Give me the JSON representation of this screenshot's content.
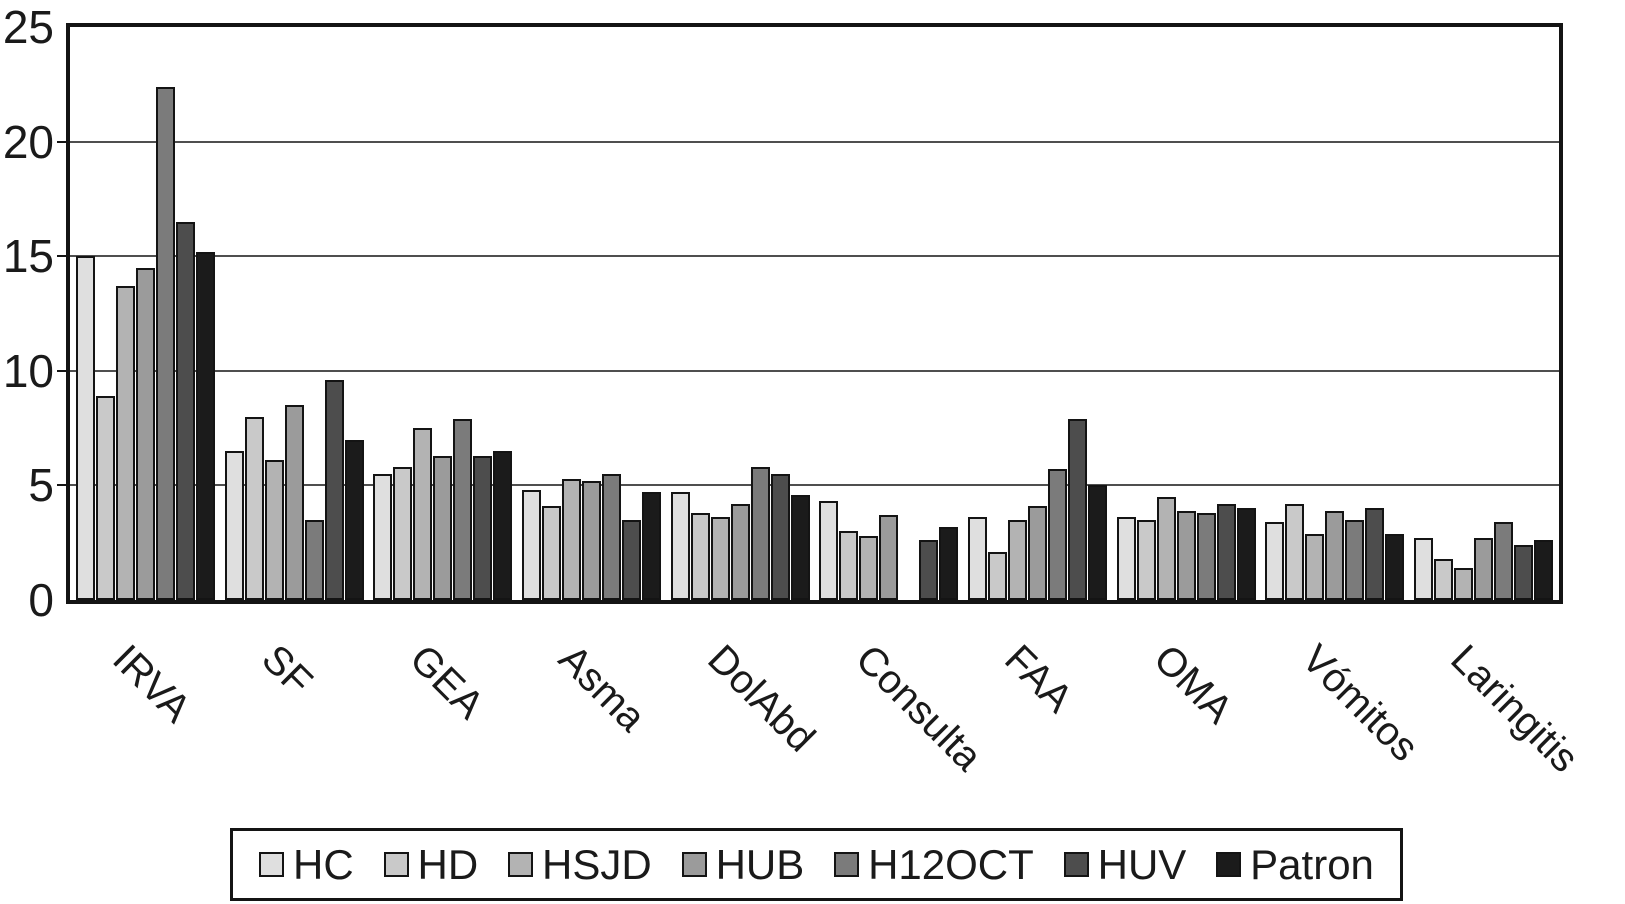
{
  "chart_data": {
    "type": "bar",
    "title": "",
    "xlabel": "",
    "ylabel": "",
    "ylim": [
      0,
      25
    ],
    "yticks": [
      0,
      5,
      10,
      15,
      20,
      25
    ],
    "grid": true,
    "legend_position": "bottom",
    "categories": [
      "IRVA",
      "SF",
      "GEA",
      "Asma",
      "DolAbd",
      "Consulta",
      "FAA",
      "OMA",
      "Vómitos",
      "Laringitis"
    ],
    "series": [
      {
        "name": "HC",
        "color": "#dfdfdf",
        "values": [
          15.0,
          6.5,
          5.5,
          4.8,
          4.7,
          4.3,
          3.6,
          3.6,
          3.4,
          2.7
        ]
      },
      {
        "name": "HD",
        "color": "#c9c9c9",
        "values": [
          8.9,
          8.0,
          5.8,
          4.1,
          3.8,
          3.0,
          2.1,
          3.5,
          4.2,
          1.8
        ]
      },
      {
        "name": "HSJD",
        "color": "#b3b3b3",
        "values": [
          13.7,
          6.1,
          7.5,
          5.3,
          3.6,
          2.8,
          3.5,
          4.5,
          2.9,
          1.4
        ]
      },
      {
        "name": "HUB",
        "color": "#9b9b9b",
        "values": [
          14.5,
          8.5,
          6.3,
          5.2,
          4.2,
          3.7,
          4.1,
          3.9,
          3.9,
          2.7
        ]
      },
      {
        "name": "H12OCT",
        "color": "#7b7b7b",
        "values": [
          22.4,
          3.5,
          7.9,
          5.5,
          5.8,
          0,
          5.7,
          3.8,
          3.5,
          3.4
        ]
      },
      {
        "name": "HUV",
        "color": "#4d4d4d",
        "values": [
          16.5,
          9.6,
          6.3,
          3.5,
          5.5,
          2.6,
          7.9,
          4.2,
          4.0,
          2.4
        ]
      },
      {
        "name": "Patron",
        "color": "#1b1b1b",
        "values": [
          15.2,
          7.0,
          6.5,
          4.7,
          4.6,
          3.2,
          5.0,
          4.0,
          2.9,
          2.6
        ]
      }
    ]
  }
}
